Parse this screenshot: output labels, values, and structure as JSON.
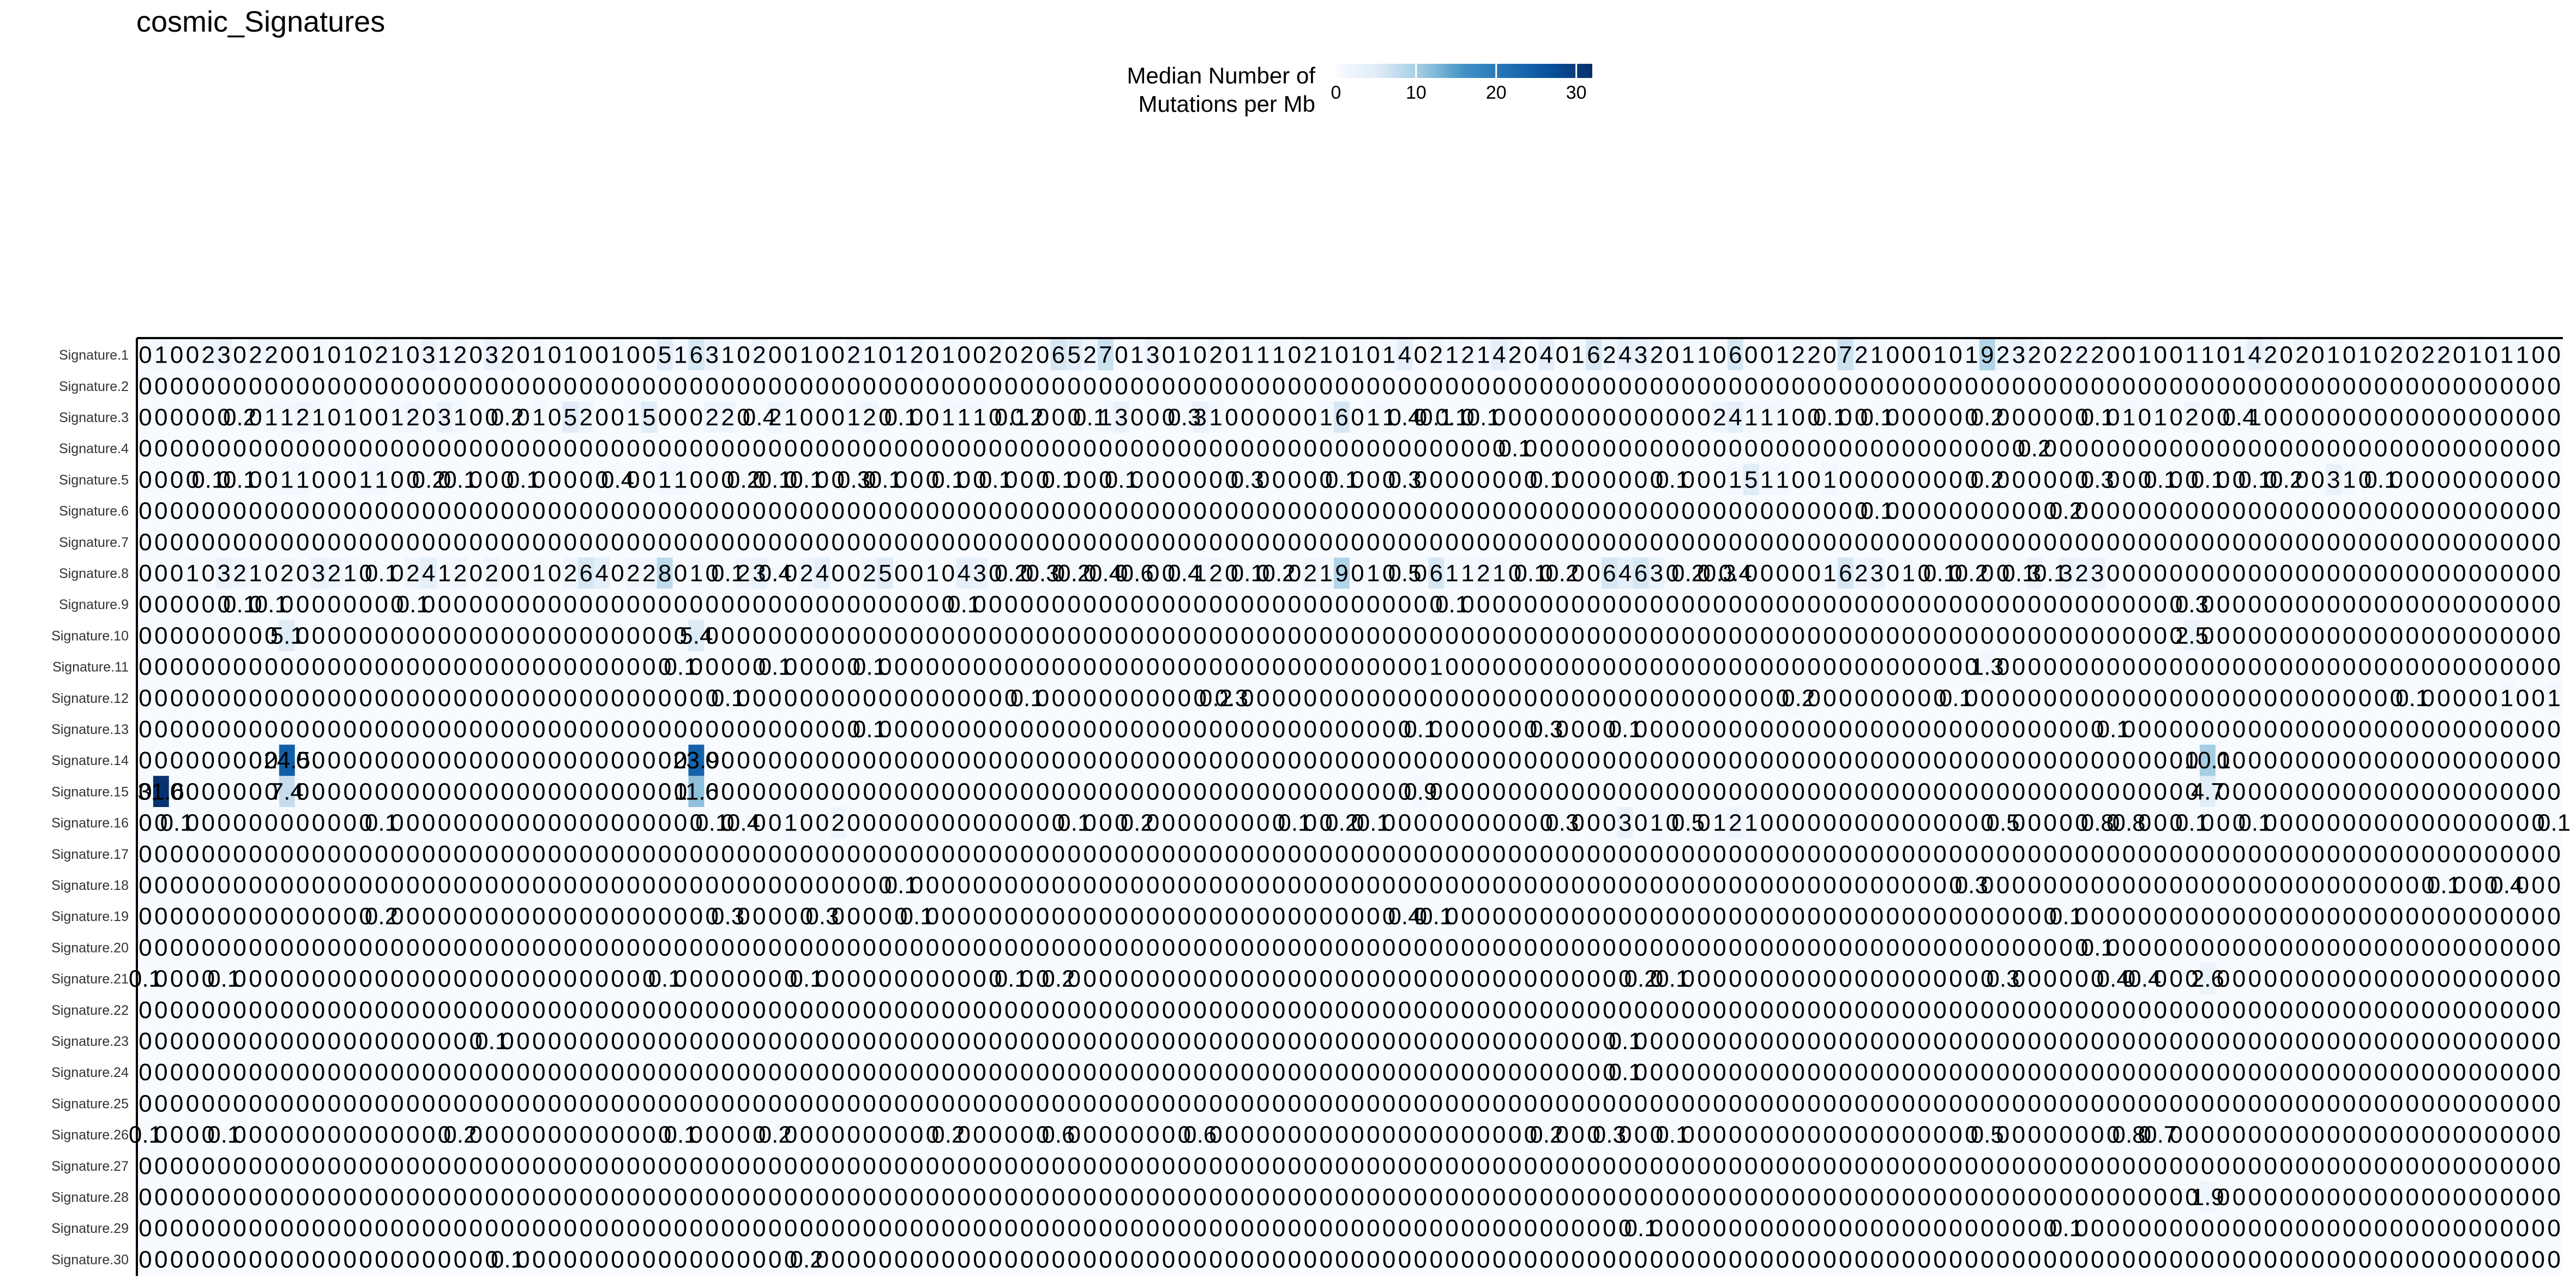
{
  "chart_data": {
    "type": "heatmap",
    "title": "cosmic_Signatures",
    "legend": {
      "title_line1": "Median Number of",
      "title_line2": "Mutations per Mb",
      "ticks": [
        "0",
        "10",
        "20",
        "30"
      ],
      "range": [
        0,
        32
      ],
      "colors": [
        "#f7fbff",
        "#deebf7",
        "#9ecae1",
        "#4292c6",
        "#2171b5",
        "#08519c",
        "#08306b"
      ],
      "position": "top-center"
    },
    "n_columns": 154,
    "rows": [
      "Signature.1",
      "Signature.2",
      "Signature.3",
      "Signature.4",
      "Signature.5",
      "Signature.6",
      "Signature.7",
      "Signature.8",
      "Signature.9",
      "Signature.10",
      "Signature.11",
      "Signature.12",
      "Signature.13",
      "Signature.14",
      "Signature.15",
      "Signature.16",
      "Signature.17",
      "Signature.18",
      "Signature.19",
      "Signature.20",
      "Signature.21",
      "Signature.22",
      "Signature.23",
      "Signature.24",
      "Signature.25",
      "Signature.26",
      "Signature.27",
      "Signature.28",
      "Signature.29",
      "Signature.30"
    ],
    "column_labels": [],
    "default_value": 0,
    "values_sparse": {
      "Signature.1": {
        "1": 1,
        "4": 2,
        "5": 3,
        "7": 2,
        "8": 2,
        "11": 1,
        "13": 1,
        "15": 2,
        "16": 1,
        "18": 3,
        "19": 1,
        "20": 2,
        "22": 3,
        "23": 2,
        "25": 1,
        "27": 1,
        "30": 1,
        "33": 5,
        "34": 1,
        "35": 6,
        "36": 3,
        "37": 1,
        "39": 2,
        "42": 1,
        "45": 2,
        "46": 1,
        "48": 1,
        "49": 2,
        "51": 1,
        "54": 2,
        "56": 2,
        "58": 6,
        "59": 5,
        "60": 2,
        "61": 7,
        "63": 1,
        "64": 3,
        "66": 1,
        "68": 2,
        "70": 1,
        "71": 1,
        "72": 1,
        "74": 2,
        "75": 1,
        "77": 1,
        "79": 1,
        "80": 4,
        "82": 2,
        "83": 1,
        "84": 2,
        "85": 1,
        "86": 4,
        "87": 2,
        "89": 4,
        "91": 1,
        "92": 6,
        "93": 2,
        "94": 4,
        "95": 3,
        "96": 2,
        "98": 1,
        "99": 1,
        "101": 6,
        "104": 1,
        "105": 2,
        "106": 2,
        "108": 7,
        "109": 2,
        "110": 1,
        "114": 1,
        "116": 1,
        "117": 9,
        "118": 2,
        "119": 3,
        "120": 2,
        "122": 2,
        "123": 2,
        "124": 2,
        "127": 1,
        "130": 1,
        "131": 1,
        "133": 1,
        "134": 4,
        "135": 2,
        "137": 2,
        "139": 1,
        "141": 1,
        "143": 2,
        "145": 2,
        "146": 2,
        "148": 1,
        "150": 1,
        "151": 1
      },
      "Signature.3": {
        "6": 0.2,
        "8": 1,
        "9": 1,
        "10": 2,
        "11": 1,
        "13": 1,
        "16": 1,
        "17": 2,
        "19": 3,
        "20": 1,
        "23": 0.2,
        "25": 1,
        "27": 5,
        "28": 2,
        "31": 1,
        "32": 5,
        "36": 2,
        "37": 2,
        "39": 0.4,
        "40": 2,
        "41": 1,
        "45": 1,
        "46": 2,
        "48": 0.1,
        "51": 1,
        "52": 1,
        "53": 1,
        "55": 0.1,
        "56": 0.2,
        "60": 0.1,
        "61": 1,
        "62": 3,
        "66": 0.3,
        "67": 3,
        "68": 1,
        "75": 1,
        "76": 6,
        "78": 1,
        "79": 1,
        "80": 0.4,
        "82": 0.1,
        "83": 0.1,
        "85": 0.1,
        "100": 2,
        "101": 4,
        "102": 1,
        "103": 1,
        "104": 1,
        "107": 0.1,
        "110": 0.1,
        "117": 0.2,
        "124": 0.1,
        "126": 1,
        "128": 1,
        "130": 2,
        "133": 0.4,
        "134": 1
      },
      "Signature.4": {
        "87": 0.1,
        "120": 0.2
      },
      "Signature.5": {
        "4": 0.1,
        "6": 0.1,
        "9": 1,
        "10": 1,
        "14": 1,
        "15": 1,
        "18": 0.2,
        "20": 0.1,
        "24": 0.1,
        "30": 0.4,
        "33": 1,
        "34": 1,
        "38": 0.2,
        "40": 0.1,
        "42": 0.1,
        "45": 0.3,
        "47": 0.1,
        "51": 0.1,
        "54": 0.1,
        "58": 0.1,
        "62": 0.1,
        "70": 0.3,
        "76": 0.1,
        "80": 0.3,
        "89": 0.1,
        "97": 0.1,
        "101": 1,
        "102": 5,
        "103": 1,
        "104": 1,
        "107": 1,
        "117": 0.2,
        "124": 0.3,
        "128": 0.1,
        "131": 0.1,
        "134": 0.1,
        "136": 0.2,
        "139": 3,
        "140": 1,
        "142": 0.1
      },
      "Signature.6": {
        "110": 0.1,
        "122": 0.2
      },
      "Signature.8": {
        "3": 1,
        "5": 3,
        "6": 2,
        "7": 1,
        "9": 2,
        "11": 3,
        "12": 2,
        "13": 1,
        "15": 0.1,
        "17": 2,
        "18": 4,
        "19": 1,
        "20": 2,
        "22": 2,
        "25": 1,
        "27": 2,
        "28": 6,
        "29": 4,
        "31": 2,
        "32": 2,
        "33": 8,
        "35": 1,
        "37": 0.1,
        "38": 2,
        "39": 3,
        "40": 0.4,
        "42": 2,
        "43": 4,
        "46": 2,
        "47": 5,
        "50": 1,
        "52": 4,
        "53": 3,
        "55": 0.2,
        "57": 0.3,
        "59": 0.2,
        "61": 0.4,
        "63": 0.6,
        "66": 0.4,
        "67": 1,
        "68": 2,
        "70": 0.1,
        "72": 0.2,
        "74": 2,
        "75": 1,
        "76": 9,
        "78": 1,
        "80": 0.5,
        "82": 6,
        "83": 1,
        "84": 1,
        "85": 2,
        "86": 1,
        "88": 0.1,
        "90": 0.2,
        "93": 6,
        "94": 4,
        "95": 6,
        "96": 3,
        "98": 0.2,
        "100": 0.3,
        "101": 0.4,
        "107": 1,
        "108": 6,
        "109": 2,
        "110": 3,
        "112": 1,
        "114": 0.1,
        "116": 0.2,
        "119": 0.1,
        "120": 3,
        "121": 0.1,
        "122": 3,
        "123": 2,
        "124": 3
      },
      "Signature.9": {
        "6": 0.1,
        "8": 0.1,
        "17": 0.1,
        "52": 0.1,
        "83": 0.1,
        "130": 0.3
      },
      "Signature.10": {
        "9": 5.1,
        "35": 5.4,
        "130": 2.5
      },
      "Signature.11": {
        "34": 0.1,
        "40": 0.1,
        "46": 0.1,
        "82": 1,
        "117": 1.3
      },
      "Signature.12": {
        "37": 0.1,
        "56": 0.1,
        "68": 0.2,
        "69": 0.3,
        "105": 0.2,
        "115": 0.1,
        "144": 0.1,
        "150": 1,
        "153": 1
      },
      "Signature.13": {
        "46": 0.1,
        "81": 0.1,
        "89": 0.3,
        "94": 0.1,
        "125": 0.1
      },
      "Signature.14": {
        "9": 24.5,
        "35": 23.9,
        "131": 10.1
      },
      "Signature.15": {
        "1": 31.6,
        "9": 7.4,
        "35": 11.6,
        "81": 0.9,
        "131": 4.7
      },
      "Signature.16": {
        "2": 0.1,
        "15": 0.1,
        "36": 0.1,
        "38": 0.4,
        "41": 1,
        "44": 2,
        "59": 0.1,
        "63": 0.2,
        "73": 0.1,
        "76": 0.2,
        "78": 0.1,
        "90": 0.3,
        "94": 3,
        "96": 1,
        "98": 0.5,
        "100": 1,
        "101": 2,
        "102": 1,
        "118": 0.5,
        "124": 0.8,
        "126": 0.8,
        "130": 0.1,
        "134": 0.1,
        "153": 0.1
      },
      "Signature.18": {
        "48": 0.1,
        "116": 0.3,
        "146": 0.1,
        "150": 0.4
      },
      "Signature.19": {
        "15": 0.2,
        "37": 0.3,
        "43": 0.3,
        "49": 0.1,
        "80": 0.4,
        "82": 0.1,
        "122": 0.1
      },
      "Signature.20": {
        "124": 0.1
      },
      "Signature.21": {
        "0": 0.1,
        "5": 0.1,
        "33": 0.1,
        "42": 0.1,
        "55": 0.1,
        "58": 0.2,
        "95": 0.2,
        "97": 0.1,
        "118": 0.3,
        "125": 0.4,
        "127": 0.4,
        "131": 2.6
      },
      "Signature.23": {
        "22": 0.1,
        "94": 0.1
      },
      "Signature.24": {
        "94": 0.1
      },
      "Signature.26": {
        "0": 0.1,
        "5": 0.1,
        "20": 0.2,
        "34": 0.1,
        "40": 0.2,
        "51": 0.2,
        "58": 0.6,
        "67": 0.6,
        "89": 0.2,
        "93": 0.3,
        "97": 0.1,
        "117": 0.5,
        "126": 0.8,
        "128": 0.7
      },
      "Signature.28": {
        "131": 1.9
      },
      "Signature.29": {
        "95": 0.1,
        "122": 0.1
      },
      "Signature.30": {
        "23": 0.1,
        "42": 0.2
      }
    }
  }
}
